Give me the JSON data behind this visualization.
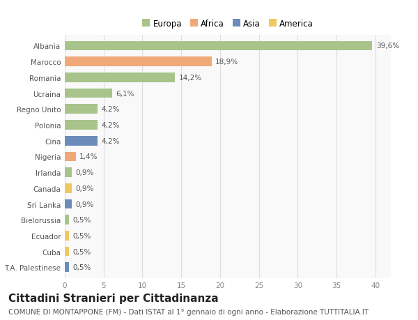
{
  "countries": [
    "Albania",
    "Marocco",
    "Romania",
    "Ucraina",
    "Regno Unito",
    "Polonia",
    "Cina",
    "Nigeria",
    "Irlanda",
    "Canada",
    "Sri Lanka",
    "Bielorussia",
    "Ecuador",
    "Cuba",
    "T.A. Palestinese"
  ],
  "values": [
    39.6,
    18.9,
    14.2,
    6.1,
    4.2,
    4.2,
    4.2,
    1.4,
    0.9,
    0.9,
    0.9,
    0.5,
    0.5,
    0.5,
    0.5
  ],
  "labels": [
    "39,6%",
    "18,9%",
    "14,2%",
    "6,1%",
    "4,2%",
    "4,2%",
    "4,2%",
    "1,4%",
    "0,9%",
    "0,9%",
    "0,9%",
    "0,5%",
    "0,5%",
    "0,5%",
    "0,5%"
  ],
  "colors": [
    "#a8c48a",
    "#f0a878",
    "#a8c48a",
    "#a8c48a",
    "#a8c48a",
    "#a8c48a",
    "#6b8cba",
    "#f0a878",
    "#a8c48a",
    "#f0c860",
    "#6b8cba",
    "#a8c48a",
    "#f0c860",
    "#f0c860",
    "#6b8cba"
  ],
  "legend_labels": [
    "Europa",
    "Africa",
    "Asia",
    "America"
  ],
  "legend_colors": [
    "#a8c48a",
    "#f0a878",
    "#6b8cba",
    "#f0c860"
  ],
  "xlim": [
    0,
    42
  ],
  "xticks": [
    0,
    5,
    10,
    15,
    20,
    25,
    30,
    35,
    40
  ],
  "title": "Cittadini Stranieri per Cittadinanza",
  "subtitle": "COMUNE DI MONTAPPONE (FM) - Dati ISTAT al 1° gennaio di ogni anno - Elaborazione TUTTITALIA.IT",
  "background_color": "#ffffff",
  "plot_bg_color": "#f9f9f9",
  "grid_color": "#dddddd",
  "bar_height": 0.6,
  "title_fontsize": 11,
  "subtitle_fontsize": 7.5,
  "label_fontsize": 7.5,
  "tick_fontsize": 7.5,
  "legend_fontsize": 8.5
}
